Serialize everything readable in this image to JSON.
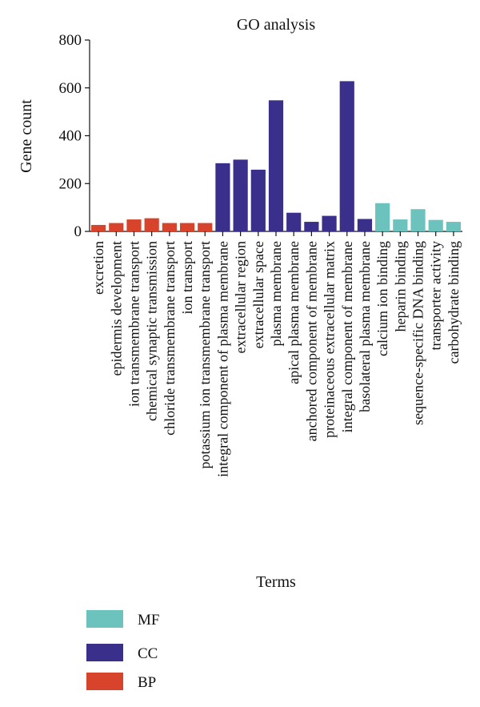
{
  "chart_data": {
    "type": "bar",
    "title": "GO analysis",
    "xlabel": "Terms",
    "ylabel": "Gene count",
    "ylim": [
      0,
      800
    ],
    "yticks": [
      0,
      200,
      400,
      600,
      800
    ],
    "grid": false,
    "legend_placement": "bottom-left",
    "groups": [
      {
        "name": "MF",
        "color": "#6cc3bd"
      },
      {
        "name": "CC",
        "color": "#3b2f8c"
      },
      {
        "name": "BP",
        "color": "#d8432c"
      }
    ],
    "bars": [
      {
        "category": "excretion",
        "value": 27,
        "group": "BP"
      },
      {
        "category": "epidermis development",
        "value": 35,
        "group": "BP"
      },
      {
        "category": "ion transmembrane transport",
        "value": 50,
        "group": "BP"
      },
      {
        "category": "chemical synaptic transmission",
        "value": 55,
        "group": "BP"
      },
      {
        "category": "chloride transmembrane transport",
        "value": 35,
        "group": "BP"
      },
      {
        "category": "ion transport",
        "value": 35,
        "group": "BP"
      },
      {
        "category": "potassium ion transmembrane transport",
        "value": 35,
        "group": "BP"
      },
      {
        "category": "integral component of plasma membrane",
        "value": 285,
        "group": "CC"
      },
      {
        "category": "extracellular region",
        "value": 300,
        "group": "CC"
      },
      {
        "category": "extracellular space",
        "value": 258,
        "group": "CC"
      },
      {
        "category": "plasma membrane",
        "value": 548,
        "group": "CC"
      },
      {
        "category": "apical plasma membrane",
        "value": 78,
        "group": "CC"
      },
      {
        "category": "anchored component of membrane",
        "value": 40,
        "group": "CC"
      },
      {
        "category": "proteinaceous extracellular matrix",
        "value": 65,
        "group": "CC"
      },
      {
        "category": "integral component of membrane",
        "value": 628,
        "group": "CC"
      },
      {
        "category": "basolateral plasma membrane",
        "value": 52,
        "group": "CC"
      },
      {
        "category": "calcium ion binding",
        "value": 118,
        "group": "MF"
      },
      {
        "category": "heparin binding",
        "value": 50,
        "group": "MF"
      },
      {
        "category": "sequence-specific DNA binding",
        "value": 93,
        "group": "MF"
      },
      {
        "category": "transporter activity",
        "value": 48,
        "group": "MF"
      },
      {
        "category": "carbohydrate binding",
        "value": 40,
        "group": "MF"
      }
    ]
  }
}
